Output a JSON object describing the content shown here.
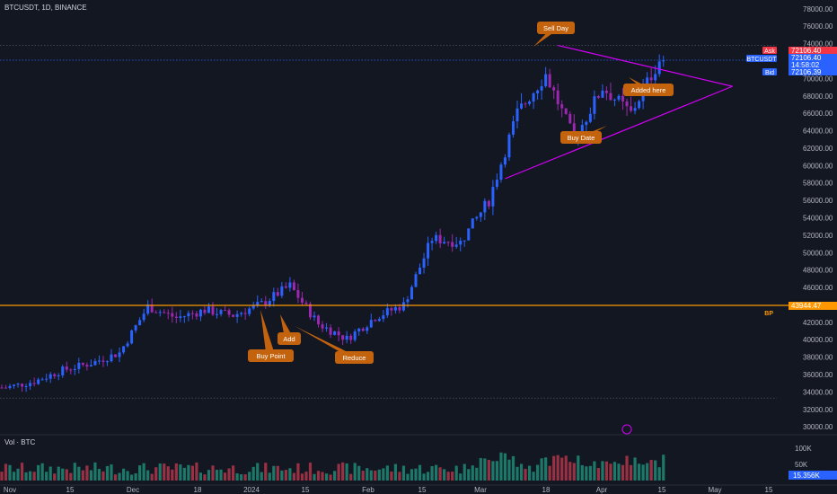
{
  "header": {
    "symbol_info": "BTCUSDT, 1D, BINANCE"
  },
  "volume_pane": {
    "label": "Vol · BTC"
  },
  "colors": {
    "up": "#2962ff",
    "down": "#9c27b0",
    "vol_up": "#1e8a74",
    "vol_down": "#b2364a",
    "trendline": "#d500f9",
    "hline": "#ff9800",
    "callout": "#c4630d"
  },
  "price_tags": {
    "ask": {
      "label": "Ask",
      "value": "72106.40",
      "color": "#f23645"
    },
    "last": {
      "label": "BTCUSDT",
      "value": "72106.40",
      "countdown": "14:58:02",
      "color": "#2962ff"
    },
    "bid": {
      "label": "Bid",
      "value": "72106.39",
      "color": "#2962ff"
    },
    "bp": {
      "label": "BP",
      "value": "43944.47",
      "color": "#ff9800"
    }
  },
  "volume_axis": {
    "ticks": [
      "100K",
      "50K"
    ],
    "current": "15.356K"
  },
  "annotations": [
    {
      "text": "Sell Day",
      "date": "2024-03-14",
      "price": 73800
    },
    {
      "text": "Added here",
      "date": "2024-04-08",
      "price": 69400
    },
    {
      "text": "Buy Date",
      "date": "2024-03-21",
      "price": 63000
    },
    {
      "text": "Buy Point",
      "date": "2024-01-09",
      "price": 44200
    },
    {
      "text": "Add",
      "date": "2024-01-12",
      "price": 43900
    },
    {
      "text": "Reduce",
      "date": "2024-01-18",
      "price": 42500
    }
  ],
  "chart_data": {
    "type": "line",
    "title": "",
    "xlabel": "",
    "ylabel": "",
    "x_ticks": [
      "Nov",
      "15",
      "Dec",
      "18",
      "2024",
      "15",
      "Feb",
      "15",
      "Mar",
      "18",
      "Apr",
      "15",
      "May",
      "15"
    ],
    "y_ticks": [
      30000,
      32000,
      34000,
      36000,
      38000,
      40000,
      42000,
      44000,
      46000,
      48000,
      50000,
      52000,
      54000,
      56000,
      58000,
      60000,
      62000,
      64000,
      66000,
      68000,
      70000,
      72000,
      74000,
      76000,
      78000
    ],
    "ylim": [
      29500,
      78500
    ],
    "series": [
      {
        "x": [
          "2023-10-30",
          "2023-11-06",
          "2023-11-13",
          "2023-11-20",
          "2023-11-27",
          "2023-12-04",
          "2023-12-11",
          "2023-12-18",
          "2023-12-25",
          "2024-01-01",
          "2024-01-08",
          "2024-01-15",
          "2024-01-22",
          "2024-01-29",
          "2024-02-05",
          "2024-02-12",
          "2024-02-19",
          "2024-02-26",
          "2024-03-04",
          "2024-03-11",
          "2024-03-18",
          "2024-03-25",
          "2024-04-01",
          "2024-04-08"
        ],
        "values": [
          34500,
          35200,
          36500,
          37300,
          38500,
          43800,
          42500,
          43400,
          42800,
          44100,
          46200,
          41800,
          40100,
          42600,
          44000,
          51600,
          51200,
          56000,
          66000,
          70500,
          63000,
          69000,
          66000,
          72106
        ]
      }
    ],
    "trendlines": [
      {
        "name": "",
        "from": {
          "x": "2024-03-14",
          "y": 73800
        },
        "to": {
          "x": "2024-04-26",
          "y": 69100
        }
      },
      {
        "name": "",
        "from": {
          "x": "2024-03-01",
          "y": 58500
        },
        "to": {
          "x": "2024-04-26",
          "y": 69100
        }
      }
    ],
    "horizontal_lines": [
      {
        "name": "BP",
        "y": 43944.47
      }
    ],
    "volume": {
      "ylim": [
        0,
        130000
      ],
      "ticks": [
        100000,
        50000
      ]
    },
    "grid": false,
    "legend": "none"
  }
}
